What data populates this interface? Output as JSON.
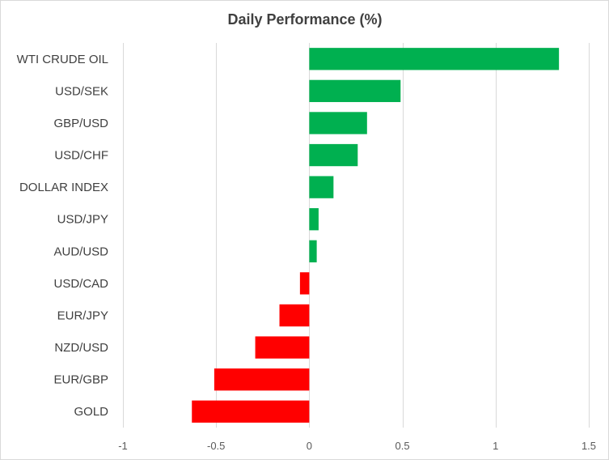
{
  "chart_data": {
    "type": "bar",
    "orientation": "horizontal",
    "title": "Daily Performance  (%)",
    "categories": [
      "WTI CRUDE OIL",
      "USD/SEK",
      "GBP/USD",
      "USD/CHF",
      "DOLLAR INDEX",
      "USD/JPY",
      "AUD/USD",
      "USD/CAD",
      "EUR/JPY",
      "NZD/USD",
      "EUR/GBP",
      "GOLD"
    ],
    "values": [
      1.34,
      0.49,
      0.31,
      0.26,
      0.13,
      0.05,
      0.04,
      -0.05,
      -0.16,
      -0.29,
      -0.51,
      -0.63
    ],
    "xlim": [
      -1,
      1.5
    ],
    "xticks": [
      -1,
      -0.5,
      0,
      0.5,
      1,
      1.5
    ],
    "xtick_labels": [
      "-1",
      "-0.5",
      "0",
      "0.5",
      "1",
      "1.5"
    ],
    "xlabel": "",
    "ylabel": "",
    "grid": "vertical",
    "colors": {
      "positive": "#00b050",
      "negative": "#ff0000"
    }
  }
}
